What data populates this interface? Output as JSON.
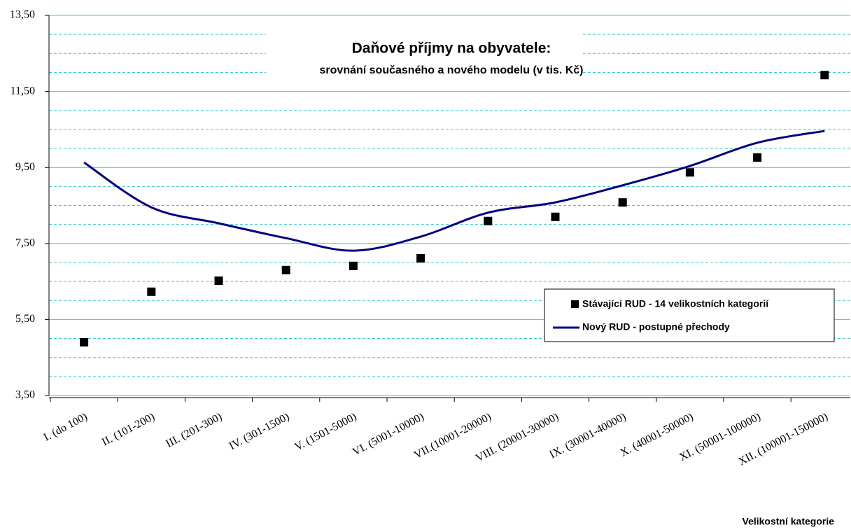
{
  "chart_data": {
    "type": "line-scatter",
    "title": "Daňové příjmy na obyvatele:",
    "subtitle": "srovnání současného a nového modelu (v tis. Kč)",
    "x_label": "Velikostní kategorie",
    "categories": [
      "I. (do 100)",
      "II. (101-200)",
      "III. (201-300)",
      "IV. (301-1500)",
      "V. (1501-5000)",
      "VI. (5001-10000)",
      "VII.(10001-20000)",
      "VIII. (20001-30000)",
      "IX. (30001-40000)",
      "X. (40001-50000)",
      "XI. (50001-100000)",
      "XII. (100001-150000)"
    ],
    "series": [
      {
        "name": "Stávající RUD - 14 velikostních kategorií",
        "kind": "scatter",
        "color": "#000000",
        "values": [
          4.9,
          6.23,
          6.52,
          6.8,
          6.91,
          7.11,
          8.09,
          8.2,
          8.58,
          9.37,
          9.76,
          11.93
        ]
      },
      {
        "name": "Nový RUD - postupné přechody",
        "kind": "line",
        "color": "#000080",
        "values": [
          9.63,
          8.45,
          8.03,
          7.64,
          7.31,
          7.68,
          8.31,
          8.58,
          9.03,
          9.54,
          10.15,
          10.46
        ]
      }
    ],
    "ylim": [
      3.5,
      13.5
    ],
    "yticks": [
      {
        "value": 3.5,
        "label": "3,50"
      },
      {
        "value": 5.5,
        "label": "5,50"
      },
      {
        "value": 7.5,
        "label": "7,50"
      },
      {
        "value": 9.5,
        "label": "9,50"
      },
      {
        "value": 11.5,
        "label": "11,50"
      },
      {
        "value": 13.5,
        "label": "13,50"
      }
    ],
    "grid": true,
    "grid_color": "#33cccc",
    "legend": "right"
  }
}
